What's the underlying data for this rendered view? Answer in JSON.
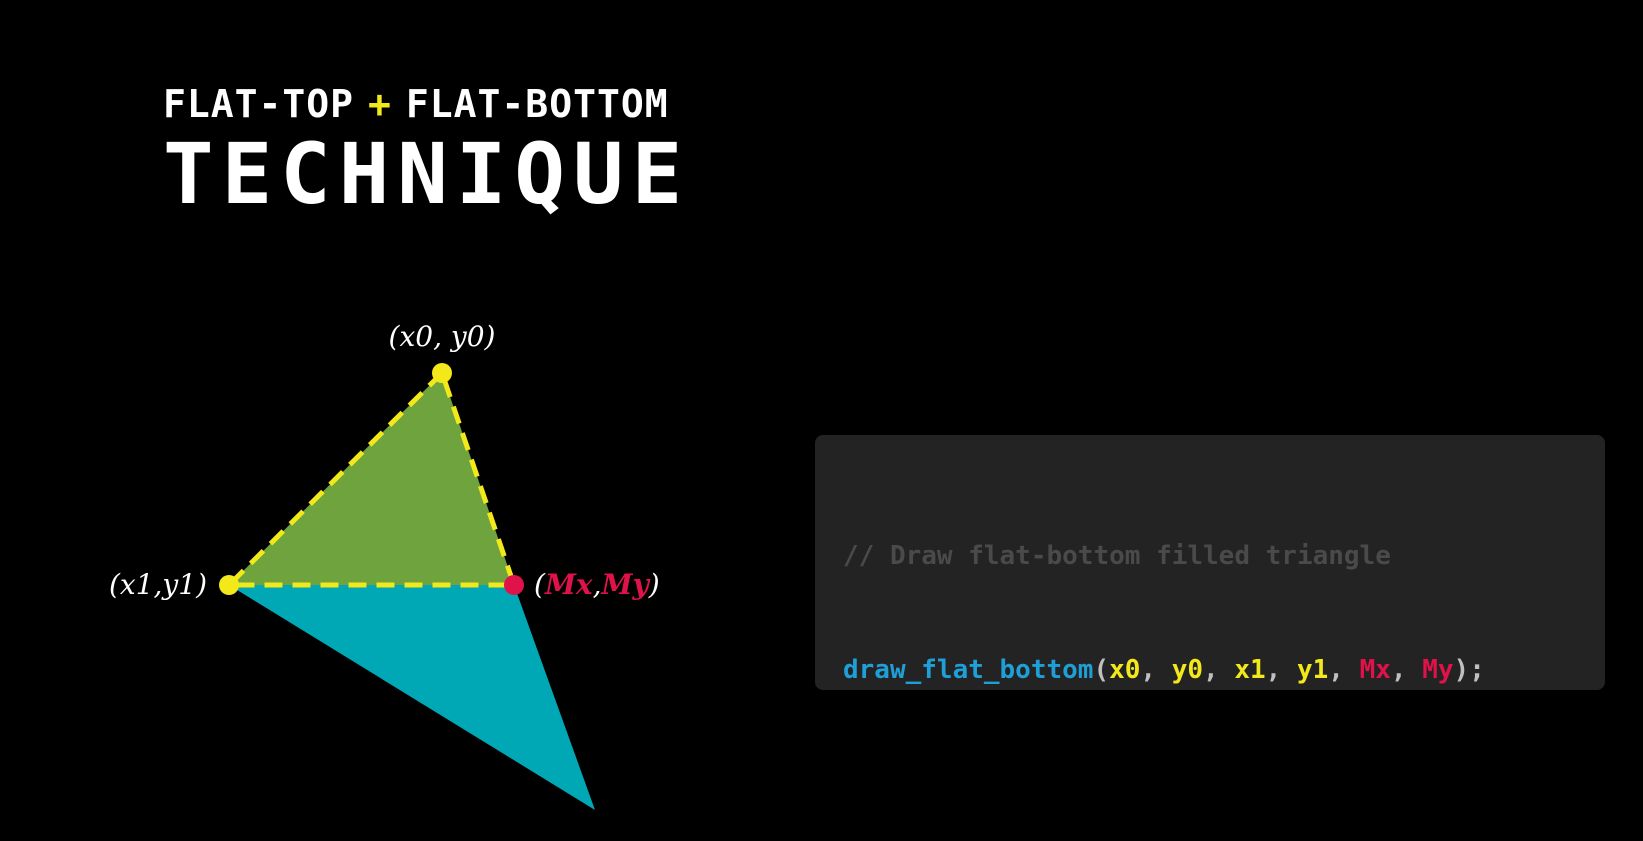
{
  "title": {
    "line1_left": "FLAT-TOP",
    "line1_plus": "+",
    "line1_right": "FLAT-BOTTOM",
    "line2": "TECHNIQUE"
  },
  "diagram": {
    "labels": {
      "top": "(x0, y0)",
      "left": "(x1,y1)",
      "mid_open": "(",
      "mid_mx": "Mx",
      "mid_comma": ",",
      "mid_my": "My",
      "mid_close": ")"
    },
    "colors": {
      "upper_fill": "#6ea33e",
      "lower_fill": "#00a8b5",
      "dash": "#f2e81a",
      "vertex": "#f2e81a",
      "mid_vertex": "#e0124a",
      "label_text": "#ffffff",
      "label_accent": "#e0124a"
    }
  },
  "code": {
    "comment": "// Draw flat-bottom filled triangle",
    "fn_name": "draw_flat_bottom",
    "open_paren": "(",
    "args": [
      {
        "text": "x0",
        "color": "yellow"
      },
      {
        "text": "y0",
        "color": "yellow"
      },
      {
        "text": "x1",
        "color": "yellow"
      },
      {
        "text": "y1",
        "color": "yellow"
      },
      {
        "text": "Mx",
        "color": "red"
      },
      {
        "text": "My",
        "color": "red"
      }
    ],
    "separator": ", ",
    "close": ");"
  }
}
